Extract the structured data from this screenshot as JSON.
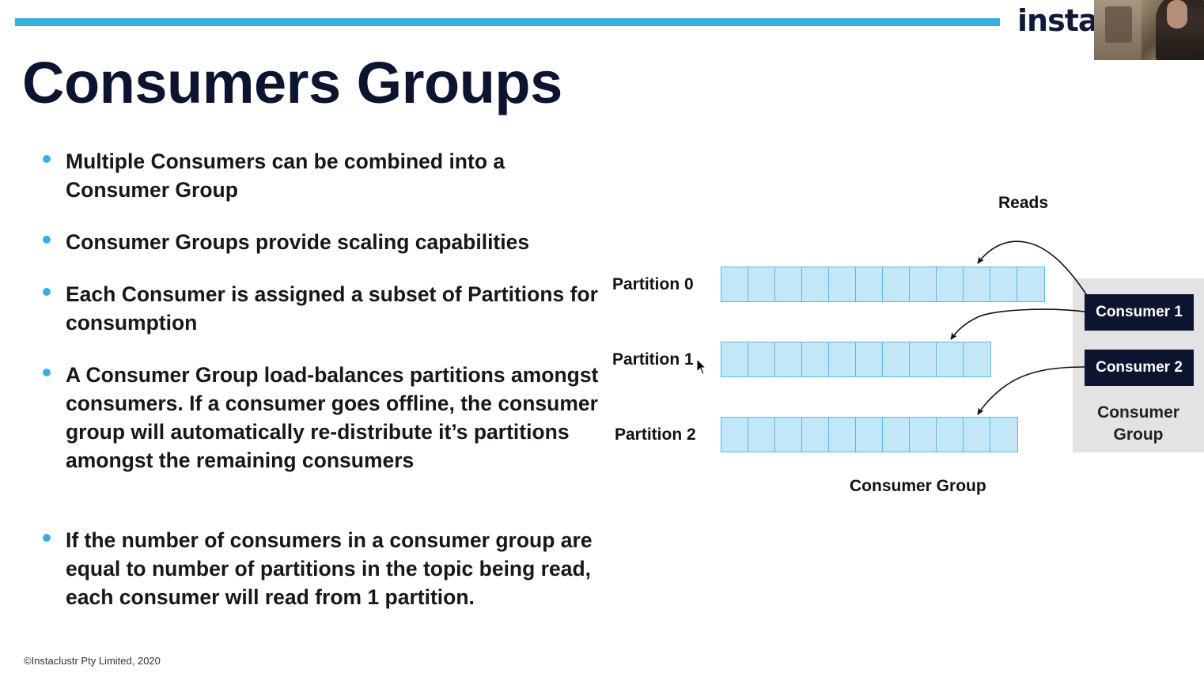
{
  "logo": {
    "text": "insta"
  },
  "slide": {
    "title": "Consumers Groups",
    "bullets": [
      "Multiple Consumers can be combined into a Consumer Group",
      "Consumer Groups provide scaling capabilities",
      "Each Consumer is assigned a subset of Partitions for consumption",
      "A Consumer Group load-balances partitions amongst consumers. If a consumer goes offline, the consumer group will automatically re-distribute it’s partitions amongst the remaining consumers",
      "If the number of consumers in a consumer group are equal to number of partitions in the topic being read, each consumer will read from 1 partition."
    ],
    "footer": "©Instaclustr Pty Limited, 2020"
  },
  "diagram": {
    "reads_label": "Reads",
    "partitions": [
      {
        "label": "Partition 0",
        "cells": 12
      },
      {
        "label": "Partition 1",
        "cells": 10
      },
      {
        "label": "Partition 2",
        "cells": 11
      }
    ],
    "consumers": [
      "Consumer 1",
      "Consumer 2"
    ],
    "group_box_label": "Consumer Group",
    "group_caption": "Consumer Group"
  },
  "colors": {
    "accent": "#3aaee0",
    "navy": "#0d1430",
    "partition_fill": "#c4e7f7",
    "partition_border": "#5ab8e4",
    "group_box": "#e3e3e3"
  }
}
